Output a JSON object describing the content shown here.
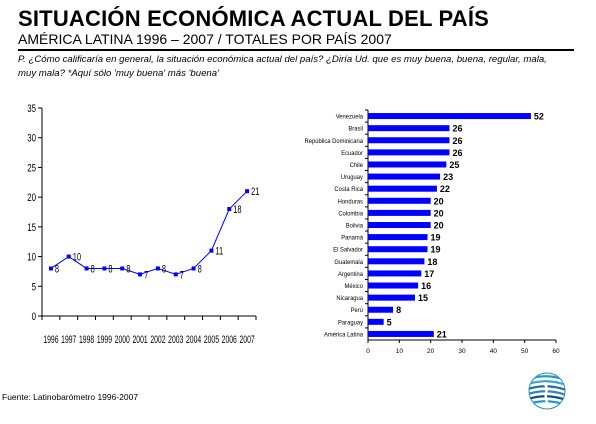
{
  "header": {
    "title": "SITUACIÓN ECONÓMICA ACTUAL DEL PAÍS",
    "subtitle": "AMÉRICA LATINA 1996 – 2007 / TOTALES POR PAÍS 2007",
    "question": "P. ¿Cómo  calificaría en general, la situación económica  actual del país? ¿Diría Ud. que es muy buena, buena, regular, mala, muy mala? *Aquí sólo 'muy buena' más 'buena'"
  },
  "footer": {
    "source": "Fuente: Latinobarómetro 1996-2007"
  },
  "logo": {
    "icon": "latinobarometro-globe-icon"
  },
  "chart_data": [
    {
      "type": "line",
      "x": [
        "1996",
        "1997",
        "1998",
        "1999",
        "2000",
        "2001",
        "2002",
        "2003",
        "2004",
        "2005",
        "2006",
        "2007"
      ],
      "y": [
        8,
        10,
        8,
        8,
        8,
        7,
        8,
        7,
        8,
        11,
        18,
        21
      ],
      "labels": [
        "8",
        "10",
        "8",
        "8",
        "8",
        "7",
        "8",
        "7",
        "8",
        "11",
        "18",
        "21"
      ],
      "ylim": [
        0,
        35
      ],
      "yticks": [
        "0",
        "5",
        "10",
        "15",
        "20",
        "25",
        "30",
        "35"
      ],
      "grid": false,
      "color": "#0000ff"
    },
    {
      "type": "bar",
      "orientation": "horizontal",
      "categories": [
        "Venezuela",
        "Brasil",
        "República Dominicana",
        "Ecuador",
        "Chile",
        "Uruguay",
        "Costa Rica",
        "Honduras",
        "Colombia",
        "Bolivia",
        "Panamá",
        "El Salvador",
        "Guatemala",
        "Argentina",
        "México",
        "Nicaragua",
        "Perú",
        "Paraguay",
        "América Latina"
      ],
      "values": [
        52,
        26,
        26,
        26,
        25,
        23,
        22,
        20,
        20,
        20,
        19,
        19,
        18,
        17,
        16,
        15,
        8,
        5,
        21
      ],
      "labels": [
        "52",
        "26",
        "26",
        "26",
        "25",
        "23",
        "22",
        "20",
        "20",
        "20",
        "19",
        "19",
        "18",
        "17",
        "16",
        "15",
        "8",
        "5",
        "21"
      ],
      "xlim": [
        0,
        60
      ],
      "xticks": [
        "0",
        "10",
        "20",
        "30",
        "40",
        "50",
        "60"
      ],
      "grid": false,
      "color": "#0000ff"
    }
  ]
}
